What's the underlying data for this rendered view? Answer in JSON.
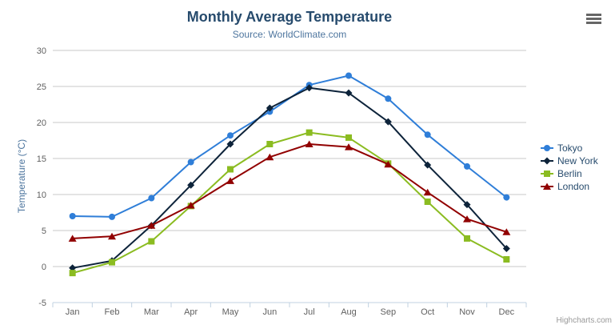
{
  "chart_data": {
    "type": "line",
    "title": "Monthly Average Temperature",
    "subtitle": "Source: WorldClimate.com",
    "xlabel": "",
    "ylabel": "Temperature (°C)",
    "categories": [
      "Jan",
      "Feb",
      "Mar",
      "Apr",
      "May",
      "Jun",
      "Jul",
      "Aug",
      "Sep",
      "Oct",
      "Nov",
      "Dec"
    ],
    "ylim": [
      -5,
      30
    ],
    "ytick_step": 5,
    "ytick_labels": [
      "-5",
      "0",
      "5",
      "10",
      "15",
      "20",
      "25",
      "30"
    ],
    "grid": true,
    "legend_position": "right",
    "series": [
      {
        "name": "Tokyo",
        "color": "#2f7ed8",
        "marker": "circle",
        "values": [
          7.0,
          6.9,
          9.5,
          14.5,
          18.2,
          21.5,
          25.2,
          26.5,
          23.3,
          18.3,
          13.9,
          9.6
        ]
      },
      {
        "name": "New York",
        "color": "#0d233a",
        "marker": "diamond",
        "values": [
          -0.2,
          0.8,
          5.7,
          11.3,
          17.0,
          22.0,
          24.8,
          24.1,
          20.1,
          14.1,
          8.6,
          2.5
        ]
      },
      {
        "name": "Berlin",
        "color": "#8bbc21",
        "marker": "square",
        "values": [
          -0.9,
          0.6,
          3.5,
          8.4,
          13.5,
          17.0,
          18.6,
          17.9,
          14.3,
          9.0,
          3.9,
          1.0
        ]
      },
      {
        "name": "London",
        "color": "#910000",
        "marker": "triangle",
        "values": [
          3.9,
          4.2,
          5.7,
          8.5,
          11.9,
          15.2,
          17.0,
          16.6,
          14.2,
          10.3,
          6.6,
          4.8
        ]
      }
    ]
  },
  "icons": {
    "menu": "hamburger-icon"
  },
  "credit": {
    "label": "Highcharts.com"
  },
  "colors": {
    "title": "#274b6d",
    "subtitle": "#4d759e",
    "axis_title": "#4d759e",
    "axis_label": "#606060",
    "grid_line": "#c9c9c9",
    "axis_line": "#c0d0e0",
    "tick": "#c0d0e0",
    "legend_text": "#274b6d",
    "credit": "#999999"
  }
}
